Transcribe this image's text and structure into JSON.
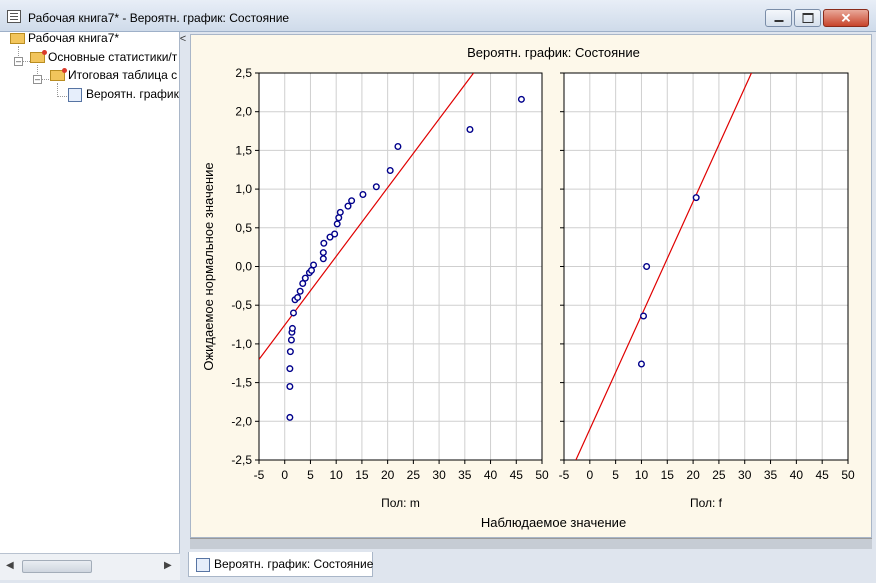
{
  "window": {
    "title": "Рабочая книга7* - Вероятн. график: Состояние",
    "buttons": {
      "minimize": "minimize",
      "maximize": "maximize",
      "close": "✕"
    }
  },
  "tree": {
    "items": [
      {
        "label": "Рабочая книга7*",
        "icon": "folder-open-icon"
      },
      {
        "label": "Основные статистики/т",
        "icon": "folder-red-icon"
      },
      {
        "label": "Итоговая таблица с",
        "icon": "folder-red-icon"
      },
      {
        "label": "Вероятн. график",
        "icon": "graph-icon"
      }
    ],
    "collapse_glyph": "<"
  },
  "tab": {
    "label": "Вероятн. график: Состояние",
    "icon": "graph-icon"
  },
  "colors": {
    "line": "#e00000",
    "marker": "#00008b",
    "panel_bg": "#fdf8ea"
  },
  "chart_data": {
    "type": "scatter",
    "title": "Вероятн. график:  Состояние",
    "ylabel": "Ожидаемое нормальное значение",
    "xlabel": "Наблюдаемое значение",
    "ylim": [
      -2.5,
      2.5
    ],
    "yticks": [
      "2,5",
      "2,0",
      "1,5",
      "1,0",
      "0,5",
      "0,0",
      "-0,5",
      "-1,0",
      "-1,5",
      "-2,0",
      "-2,5"
    ],
    "xlim": [
      -5,
      50
    ],
    "xticks": [
      "-5",
      "0",
      "5",
      "10",
      "15",
      "20",
      "25",
      "30",
      "35",
      "40",
      "45",
      "50"
    ],
    "grid": true,
    "panels": [
      {
        "label": "Пол: m",
        "line": {
          "x1": -5,
          "y1": -1.2,
          "x2": 36.7,
          "y2": 2.5
        },
        "points": [
          [
            1,
            -1.95
          ],
          [
            1,
            -1.55
          ],
          [
            1,
            -1.32
          ],
          [
            1.1,
            -1.1
          ],
          [
            1.3,
            -0.95
          ],
          [
            1.4,
            -0.85
          ],
          [
            1.5,
            -0.8
          ],
          [
            1.7,
            -0.6
          ],
          [
            2,
            -0.43
          ],
          [
            2.5,
            -0.4
          ],
          [
            3,
            -0.32
          ],
          [
            3.5,
            -0.22
          ],
          [
            4,
            -0.15
          ],
          [
            4.8,
            -0.08
          ],
          [
            5.2,
            -0.05
          ],
          [
            5.6,
            0.02
          ],
          [
            7.5,
            0.1
          ],
          [
            7.5,
            0.18
          ],
          [
            7.6,
            0.3
          ],
          [
            8.8,
            0.38
          ],
          [
            9.7,
            0.42
          ],
          [
            10.2,
            0.55
          ],
          [
            10.5,
            0.63
          ],
          [
            10.8,
            0.7
          ],
          [
            12.3,
            0.78
          ],
          [
            13,
            0.85
          ],
          [
            15.2,
            0.93
          ],
          [
            17.8,
            1.03
          ],
          [
            20.5,
            1.24
          ],
          [
            22,
            1.55
          ],
          [
            36,
            1.77
          ],
          [
            46,
            2.16
          ]
        ]
      },
      {
        "label": "Пол: f",
        "line": {
          "x1": -2.7,
          "y1": -2.5,
          "x2": 31.3,
          "y2": 2.5
        },
        "points": [
          [
            10,
            -1.26
          ],
          [
            10.4,
            -0.64
          ],
          [
            11,
            0
          ],
          [
            20.6,
            0.89
          ]
        ]
      }
    ]
  }
}
